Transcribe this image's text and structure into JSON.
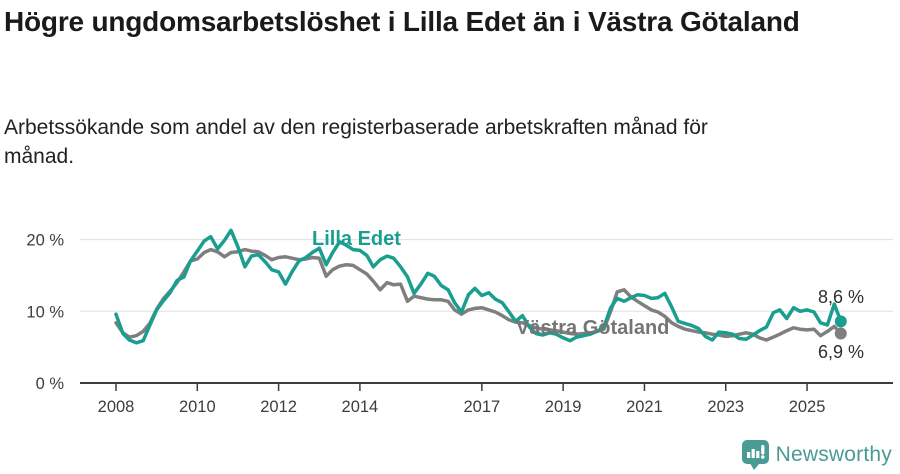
{
  "header": {
    "title": "Högre ungdomsarbetslöshet i Lilla Edet än i Västra Götaland",
    "subtitle": "Arbetssökande som andel av den registerbaserade arbetskraften månad för månad."
  },
  "footer": {
    "brand": "Newsworthy"
  },
  "colors": {
    "series_lilla_edet": "#1A9E8F",
    "series_vastra_gotaland": "#7F7F7F",
    "label_vastra_gotaland": "#757575",
    "axis_text": "#3D3D3D",
    "axis_line": "#3D3D3D",
    "gridline": "#E0E0E0",
    "end_label_text": "#2F2F2F",
    "brand_teal": "#4A9B94",
    "title_text": "#1A1A1A"
  },
  "chart_data": {
    "type": "line",
    "title": "Högre ungdomsarbetslöshet i Lilla Edet än i Västra Götaland",
    "subtitle": "Arbetssökande som andel av den registerbaserade arbetskraften månad för månad.",
    "xlabel": "",
    "ylabel": "",
    "ylim": [
      0,
      22
    ],
    "xlim": [
      2007.1,
      2027.1
    ],
    "grid": "horizontal",
    "legend_position": "inline-labels",
    "y_ticks": [
      0,
      10,
      20
    ],
    "y_tick_labels": [
      "0 %",
      "10 %",
      "20 %"
    ],
    "x_ticks": [
      2008,
      2010,
      2012,
      2014,
      2017,
      2019,
      2021,
      2023,
      2025
    ],
    "x_tick_labels": [
      "2008",
      "2010",
      "2012",
      "2014",
      "2017",
      "2019",
      "2021",
      "2023",
      "2025"
    ],
    "x": [
      2008.0,
      2008.17,
      2008.33,
      2008.5,
      2008.67,
      2008.83,
      2009.0,
      2009.17,
      2009.33,
      2009.5,
      2009.67,
      2009.83,
      2010.0,
      2010.17,
      2010.33,
      2010.5,
      2010.67,
      2010.83,
      2011.0,
      2011.17,
      2011.33,
      2011.5,
      2011.67,
      2011.83,
      2012.0,
      2012.17,
      2012.33,
      2012.5,
      2012.67,
      2012.83,
      2013.0,
      2013.17,
      2013.33,
      2013.5,
      2013.67,
      2013.83,
      2014.0,
      2014.17,
      2014.33,
      2014.5,
      2014.67,
      2014.83,
      2015.0,
      2015.17,
      2015.33,
      2015.5,
      2015.67,
      2015.83,
      2016.0,
      2016.17,
      2016.33,
      2016.5,
      2016.67,
      2016.83,
      2017.0,
      2017.17,
      2017.33,
      2017.5,
      2017.67,
      2017.83,
      2018.0,
      2018.17,
      2018.33,
      2018.5,
      2018.67,
      2018.83,
      2019.0,
      2019.17,
      2019.33,
      2019.5,
      2019.67,
      2019.83,
      2020.0,
      2020.17,
      2020.33,
      2020.5,
      2020.67,
      2020.83,
      2021.0,
      2021.17,
      2021.33,
      2021.5,
      2021.67,
      2021.83,
      2022.0,
      2022.17,
      2022.33,
      2022.5,
      2022.67,
      2022.83,
      2023.0,
      2023.17,
      2023.33,
      2023.5,
      2023.67,
      2023.83,
      2024.0,
      2024.17,
      2024.33,
      2024.5,
      2024.67,
      2024.83,
      2025.0,
      2025.17,
      2025.33,
      2025.5,
      2025.67,
      2025.83
    ],
    "series": [
      {
        "name": "Västra Götaland",
        "color": "#7F7F7F",
        "end_value": 6.9,
        "end_label": "6,9 %",
        "values": [
          8.4,
          7.0,
          6.4,
          6.6,
          7.2,
          8.3,
          10.3,
          11.8,
          12.8,
          14.0,
          15.5,
          17.0,
          17.3,
          18.2,
          18.6,
          18.3,
          17.6,
          18.2,
          18.3,
          18.6,
          18.4,
          18.3,
          17.8,
          17.2,
          17.5,
          17.6,
          17.4,
          17.2,
          17.3,
          17.5,
          17.4,
          14.9,
          15.8,
          16.3,
          16.5,
          16.4,
          15.8,
          15.2,
          14.2,
          13.0,
          14.0,
          13.7,
          13.8,
          11.4,
          12.1,
          11.9,
          11.7,
          11.6,
          11.6,
          11.4,
          10.2,
          9.6,
          10.2,
          10.4,
          10.5,
          10.2,
          9.9,
          9.4,
          8.8,
          8.5,
          8.4,
          8.0,
          7.7,
          7.5,
          7.4,
          7.3,
          7.1,
          6.9,
          6.8,
          6.9,
          7.0,
          7.2,
          7.5,
          10.0,
          12.7,
          13.0,
          12.0,
          11.4,
          10.8,
          10.2,
          9.9,
          9.3,
          8.4,
          7.9,
          7.5,
          7.3,
          7.1,
          7.0,
          6.8,
          6.7,
          6.5,
          6.6,
          6.8,
          7.0,
          6.8,
          6.3,
          6.0,
          6.4,
          6.8,
          7.3,
          7.7,
          7.5,
          7.4,
          7.5,
          6.6,
          7.2,
          7.9,
          6.9
        ]
      },
      {
        "name": "Lilla Edet",
        "color": "#1A9E8F",
        "end_value": 8.6,
        "end_label": "8,6 %",
        "values": [
          9.6,
          6.9,
          6.0,
          5.6,
          5.9,
          8.0,
          10.2,
          11.5,
          12.6,
          14.3,
          14.8,
          17.0,
          18.4,
          19.8,
          20.4,
          18.7,
          19.9,
          21.3,
          19.0,
          16.2,
          17.7,
          17.9,
          16.9,
          15.8,
          15.5,
          13.8,
          15.5,
          17.0,
          17.5,
          18.2,
          18.8,
          16.5,
          18.2,
          19.7,
          19.2,
          18.6,
          18.5,
          17.8,
          16.2,
          17.2,
          17.7,
          17.4,
          16.2,
          14.8,
          12.5,
          13.8,
          15.3,
          14.9,
          13.6,
          13.0,
          11.2,
          9.9,
          12.3,
          13.2,
          12.2,
          12.6,
          11.7,
          11.2,
          9.9,
          8.6,
          9.4,
          7.8,
          6.9,
          6.7,
          7.0,
          6.8,
          6.3,
          5.9,
          6.4,
          6.6,
          6.8,
          7.2,
          7.8,
          10.5,
          11.8,
          11.4,
          11.9,
          12.3,
          12.2,
          11.8,
          11.9,
          12.5,
          10.6,
          8.6,
          8.3,
          8.0,
          7.6,
          6.5,
          6.0,
          7.1,
          7.0,
          6.8,
          6.2,
          6.1,
          6.7,
          7.3,
          7.8,
          9.8,
          10.2,
          9.0,
          10.5,
          10.0,
          10.2,
          9.9,
          8.4,
          8.1,
          11.0,
          8.6
        ]
      }
    ]
  }
}
